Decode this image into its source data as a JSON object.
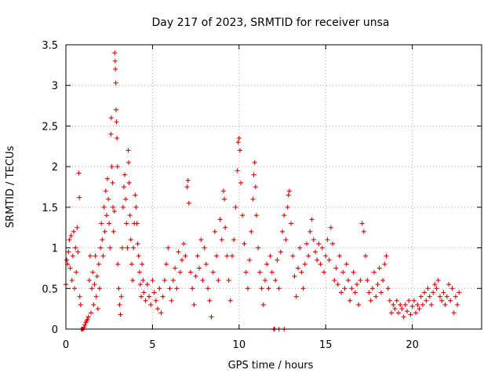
{
  "chart_data": {
    "type": "scatter",
    "title": "Day 217 of 2023, SRMTID for receiver unsa",
    "xlabel": "GPS time / hours",
    "ylabel": "SRMTID / TECUs",
    "xlim": [
      0,
      24
    ],
    "ylim": [
      0,
      3.5
    ],
    "xticks": [
      0,
      5,
      10,
      15,
      20
    ],
    "xtick_labels": [
      "0",
      "5",
      "10",
      "15",
      "20"
    ],
    "yticks": [
      0,
      0.5,
      1,
      1.5,
      2,
      2.5,
      3,
      3.5
    ],
    "ytick_labels": [
      "0",
      "0.5",
      "1",
      "1.5",
      "2",
      "2.5",
      "3",
      "3.5"
    ],
    "grid": true,
    "marker": "+",
    "color": "#e00000",
    "series": [
      {
        "name": "SRMTID",
        "points": [
          [
            0.0,
            0.55
          ],
          [
            0.05,
            0.85
          ],
          [
            0.1,
            0.8
          ],
          [
            0.15,
            0.95
          ],
          [
            0.2,
            1.1
          ],
          [
            0.25,
            0.75
          ],
          [
            0.3,
            1.15
          ],
          [
            0.35,
            0.6
          ],
          [
            0.4,
            0.9
          ],
          [
            0.45,
            1.2
          ],
          [
            0.5,
            0.5
          ],
          [
            0.55,
            1.0
          ],
          [
            0.6,
            0.7
          ],
          [
            0.65,
            1.25
          ],
          [
            0.7,
            0.95
          ],
          [
            0.75,
            1.92
          ],
          [
            0.78,
            1.62
          ],
          [
            0.8,
            0.4
          ],
          [
            0.85,
            0.3
          ],
          [
            0.9,
            0.0
          ],
          [
            0.95,
            0.0
          ],
          [
            1.0,
            0.0
          ],
          [
            1.05,
            0.02
          ],
          [
            1.1,
            0.05
          ],
          [
            1.15,
            0.08
          ],
          [
            1.2,
            0.1
          ],
          [
            1.25,
            0.12
          ],
          [
            1.3,
            0.15
          ],
          [
            1.35,
            0.6
          ],
          [
            1.4,
            0.9
          ],
          [
            1.45,
            0.2
          ],
          [
            1.5,
            0.5
          ],
          [
            1.55,
            0.7
          ],
          [
            1.6,
            0.3
          ],
          [
            1.65,
            0.55
          ],
          [
            1.7,
            0.9
          ],
          [
            1.75,
            0.4
          ],
          [
            1.8,
            0.65
          ],
          [
            1.85,
            0.25
          ],
          [
            1.9,
            0.8
          ],
          [
            1.95,
            0.5
          ],
          [
            2.0,
            1.0
          ],
          [
            2.05,
            1.3
          ],
          [
            2.1,
            1.1
          ],
          [
            2.15,
            0.9
          ],
          [
            2.2,
            1.5
          ],
          [
            2.25,
            1.2
          ],
          [
            2.3,
            1.7
          ],
          [
            2.35,
            1.4
          ],
          [
            2.4,
            1.85
          ],
          [
            2.45,
            1.6
          ],
          [
            2.5,
            1.3
          ],
          [
            2.55,
            1.0
          ],
          [
            2.6,
            2.4
          ],
          [
            2.62,
            2.6
          ],
          [
            2.65,
            2.0
          ],
          [
            2.7,
            1.8
          ],
          [
            2.72,
            1.5
          ],
          [
            2.75,
            1.2
          ],
          [
            2.8,
            1.45
          ],
          [
            2.82,
            3.4
          ],
          [
            2.84,
            3.3
          ],
          [
            2.86,
            3.2
          ],
          [
            2.88,
            3.03
          ],
          [
            2.9,
            2.7
          ],
          [
            2.92,
            2.55
          ],
          [
            2.95,
            2.35
          ],
          [
            2.98,
            2.0
          ],
          [
            3.0,
            0.8
          ],
          [
            3.05,
            0.5
          ],
          [
            3.1,
            0.3
          ],
          [
            3.15,
            0.18
          ],
          [
            3.2,
            0.4
          ],
          [
            3.25,
            1.0
          ],
          [
            3.3,
            1.5
          ],
          [
            3.35,
            1.75
          ],
          [
            3.4,
            1.9
          ],
          [
            3.45,
            1.6
          ],
          [
            3.5,
            1.3
          ],
          [
            3.55,
            1.0
          ],
          [
            3.6,
            2.2
          ],
          [
            3.62,
            2.05
          ],
          [
            3.65,
            1.8
          ],
          [
            3.7,
            1.4
          ],
          [
            3.75,
            1.1
          ],
          [
            3.8,
            0.8
          ],
          [
            3.85,
            0.6
          ],
          [
            3.9,
            1.0
          ],
          [
            3.95,
            1.3
          ],
          [
            4.0,
            1.65
          ],
          [
            4.05,
            1.5
          ],
          [
            4.1,
            1.3
          ],
          [
            4.15,
            1.05
          ],
          [
            4.2,
            0.9
          ],
          [
            4.25,
            0.7
          ],
          [
            4.3,
            0.55
          ],
          [
            4.35,
            0.4
          ],
          [
            4.4,
            0.8
          ],
          [
            4.45,
            0.6
          ],
          [
            4.5,
            0.45
          ],
          [
            4.6,
            0.35
          ],
          [
            4.7,
            0.55
          ],
          [
            4.8,
            0.4
          ],
          [
            4.9,
            0.3
          ],
          [
            5.0,
            0.6
          ],
          [
            5.1,
            0.45
          ],
          [
            5.2,
            0.35
          ],
          [
            5.3,
            0.25
          ],
          [
            5.4,
            0.5
          ],
          [
            5.5,
            0.2
          ],
          [
            5.6,
            0.4
          ],
          [
            5.7,
            0.6
          ],
          [
            5.8,
            0.8
          ],
          [
            5.9,
            1.0
          ],
          [
            6.0,
            0.5
          ],
          [
            6.1,
            0.35
          ],
          [
            6.2,
            0.6
          ],
          [
            6.3,
            0.75
          ],
          [
            6.4,
            0.5
          ],
          [
            6.5,
            0.95
          ],
          [
            6.6,
            0.7
          ],
          [
            6.7,
            0.85
          ],
          [
            6.8,
            1.05
          ],
          [
            6.9,
            0.9
          ],
          [
            7.0,
            1.75
          ],
          [
            7.05,
            1.83
          ],
          [
            7.1,
            1.55
          ],
          [
            7.2,
            0.7
          ],
          [
            7.3,
            0.5
          ],
          [
            7.4,
            0.3
          ],
          [
            7.5,
            0.65
          ],
          [
            7.6,
            0.9
          ],
          [
            7.7,
            0.75
          ],
          [
            7.8,
            1.1
          ],
          [
            7.9,
            0.6
          ],
          [
            8.0,
            1.0
          ],
          [
            8.1,
            0.8
          ],
          [
            8.2,
            0.5
          ],
          [
            8.3,
            0.35
          ],
          [
            8.4,
            0.15
          ],
          [
            8.5,
            0.7
          ],
          [
            8.6,
            1.2
          ],
          [
            8.7,
            0.9
          ],
          [
            8.8,
            0.6
          ],
          [
            8.9,
            1.35
          ],
          [
            9.0,
            1.1
          ],
          [
            9.1,
            1.7
          ],
          [
            9.15,
            1.6
          ],
          [
            9.2,
            1.25
          ],
          [
            9.3,
            0.9
          ],
          [
            9.4,
            0.6
          ],
          [
            9.5,
            0.35
          ],
          [
            9.6,
            0.9
          ],
          [
            9.7,
            1.1
          ],
          [
            9.8,
            1.5
          ],
          [
            9.9,
            1.95
          ],
          [
            9.95,
            2.3
          ],
          [
            10.0,
            2.35
          ],
          [
            10.05,
            2.2
          ],
          [
            10.1,
            1.8
          ],
          [
            10.2,
            1.4
          ],
          [
            10.3,
            1.05
          ],
          [
            10.4,
            0.7
          ],
          [
            10.5,
            0.5
          ],
          [
            10.6,
            0.85
          ],
          [
            10.7,
            1.2
          ],
          [
            10.8,
            1.6
          ],
          [
            10.85,
            1.9
          ],
          [
            10.9,
            2.05
          ],
          [
            10.95,
            1.75
          ],
          [
            11.0,
            1.4
          ],
          [
            11.1,
            1.0
          ],
          [
            11.2,
            0.7
          ],
          [
            11.3,
            0.5
          ],
          [
            11.4,
            0.3
          ],
          [
            11.5,
            0.6
          ],
          [
            11.6,
            0.8
          ],
          [
            11.7,
            0.5
          ],
          [
            11.8,
            0.9
          ],
          [
            11.9,
            0.7
          ],
          [
            12.0,
            0.0
          ],
          [
            12.05,
            0.0
          ],
          [
            12.3,
            0.0
          ],
          [
            12.6,
            0.0
          ],
          [
            12.1,
            0.6
          ],
          [
            12.2,
            0.85
          ],
          [
            12.3,
            0.5
          ],
          [
            12.4,
            0.95
          ],
          [
            12.5,
            1.2
          ],
          [
            12.6,
            1.4
          ],
          [
            12.7,
            1.1
          ],
          [
            12.8,
            1.5
          ],
          [
            12.85,
            1.65
          ],
          [
            12.9,
            1.7
          ],
          [
            13.0,
            1.3
          ],
          [
            13.1,
            0.9
          ],
          [
            13.2,
            0.65
          ],
          [
            13.3,
            0.4
          ],
          [
            13.4,
            0.75
          ],
          [
            13.5,
            1.0
          ],
          [
            13.6,
            0.7
          ],
          [
            13.7,
            0.5
          ],
          [
            13.8,
            0.8
          ],
          [
            13.9,
            1.05
          ],
          [
            14.0,
            0.9
          ],
          [
            14.1,
            1.2
          ],
          [
            14.2,
            1.35
          ],
          [
            14.3,
            1.1
          ],
          [
            14.4,
            0.95
          ],
          [
            14.5,
            0.85
          ],
          [
            14.6,
            1.05
          ],
          [
            14.7,
            0.8
          ],
          [
            14.8,
            1.0
          ],
          [
            14.9,
            0.7
          ],
          [
            15.0,
            0.9
          ],
          [
            15.1,
            1.1
          ],
          [
            15.2,
            0.85
          ],
          [
            15.3,
            1.25
          ],
          [
            15.4,
            1.05
          ],
          [
            15.5,
            0.6
          ],
          [
            15.6,
            0.75
          ],
          [
            15.7,
            0.55
          ],
          [
            15.8,
            0.9
          ],
          [
            15.9,
            0.45
          ],
          [
            16.0,
            0.7
          ],
          [
            16.1,
            0.5
          ],
          [
            16.2,
            0.8
          ],
          [
            16.3,
            0.6
          ],
          [
            16.4,
            0.35
          ],
          [
            16.5,
            0.5
          ],
          [
            16.6,
            0.7
          ],
          [
            16.7,
            0.45
          ],
          [
            16.8,
            0.55
          ],
          [
            16.9,
            0.3
          ],
          [
            17.0,
            0.6
          ],
          [
            17.1,
            1.3
          ],
          [
            17.2,
            1.2
          ],
          [
            17.3,
            0.9
          ],
          [
            17.4,
            0.6
          ],
          [
            17.5,
            0.45
          ],
          [
            17.6,
            0.35
          ],
          [
            17.7,
            0.5
          ],
          [
            17.8,
            0.7
          ],
          [
            17.9,
            0.4
          ],
          [
            18.0,
            0.55
          ],
          [
            18.1,
            0.75
          ],
          [
            18.2,
            0.45
          ],
          [
            18.3,
            0.6
          ],
          [
            18.4,
            0.8
          ],
          [
            18.5,
            0.9
          ],
          [
            18.6,
            0.5
          ],
          [
            18.7,
            0.35
          ],
          [
            18.8,
            0.2
          ],
          [
            18.9,
            0.3
          ],
          [
            19.0,
            0.25
          ],
          [
            19.1,
            0.35
          ],
          [
            19.2,
            0.2
          ],
          [
            19.3,
            0.3
          ],
          [
            19.4,
            0.25
          ],
          [
            19.5,
            0.15
          ],
          [
            19.6,
            0.3
          ],
          [
            19.7,
            0.22
          ],
          [
            19.8,
            0.35
          ],
          [
            19.9,
            0.18
          ],
          [
            20.0,
            0.28
          ],
          [
            20.1,
            0.35
          ],
          [
            20.2,
            0.2
          ],
          [
            20.3,
            0.3
          ],
          [
            20.4,
            0.25
          ],
          [
            20.5,
            0.4
          ],
          [
            20.6,
            0.3
          ],
          [
            20.7,
            0.45
          ],
          [
            20.8,
            0.35
          ],
          [
            20.9,
            0.5
          ],
          [
            21.0,
            0.4
          ],
          [
            21.1,
            0.3
          ],
          [
            21.2,
            0.45
          ],
          [
            21.3,
            0.55
          ],
          [
            21.4,
            0.5
          ],
          [
            21.5,
            0.6
          ],
          [
            21.6,
            0.4
          ],
          [
            21.7,
            0.35
          ],
          [
            21.8,
            0.45
          ],
          [
            21.9,
            0.3
          ],
          [
            22.0,
            0.4
          ],
          [
            22.1,
            0.55
          ],
          [
            22.2,
            0.35
          ],
          [
            22.3,
            0.5
          ],
          [
            22.4,
            0.2
          ],
          [
            22.5,
            0.4
          ],
          [
            22.6,
            0.3
          ],
          [
            22.7,
            0.45
          ]
        ]
      }
    ]
  }
}
